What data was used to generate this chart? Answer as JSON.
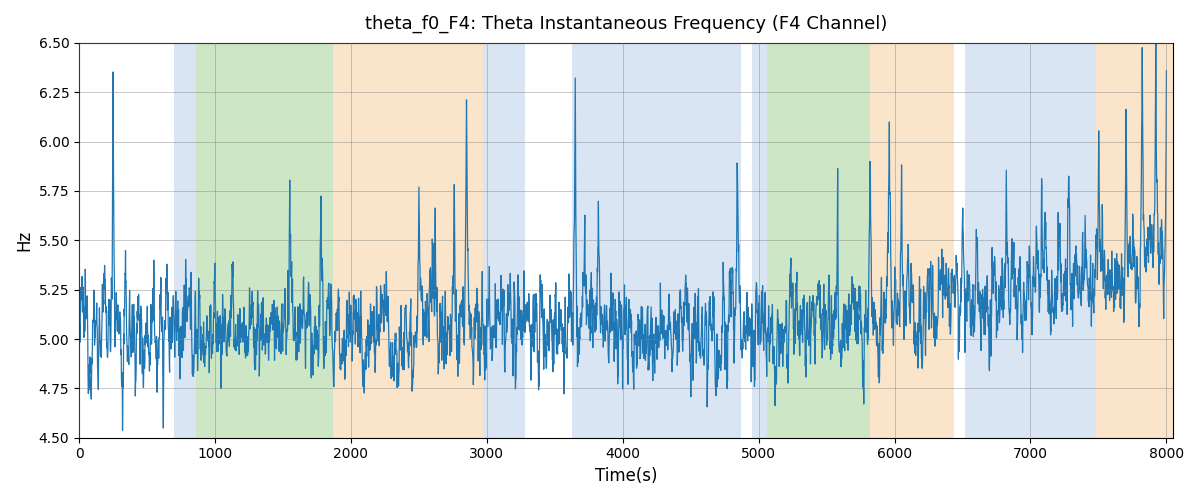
{
  "title": "theta_f0_F4: Theta Instantaneous Frequency (F4 Channel)",
  "xlabel": "Time(s)",
  "ylabel": "Hz",
  "xlim": [
    0,
    8050
  ],
  "ylim": [
    4.5,
    6.5
  ],
  "yticks": [
    4.5,
    4.75,
    5.0,
    5.25,
    5.5,
    5.75,
    6.0,
    6.25,
    6.5
  ],
  "xticks": [
    0,
    1000,
    2000,
    3000,
    4000,
    5000,
    6000,
    7000,
    8000
  ],
  "line_color": "#1f77b4",
  "bg_color": "#ffffff",
  "bands": [
    {
      "xmin": 700,
      "xmax": 860,
      "color": "#aec6e8",
      "alpha": 0.45
    },
    {
      "xmin": 860,
      "xmax": 1870,
      "color": "#90c97f",
      "alpha": 0.45
    },
    {
      "xmin": 1870,
      "xmax": 2970,
      "color": "#f5c48a",
      "alpha": 0.45
    },
    {
      "xmin": 2970,
      "xmax": 3280,
      "color": "#aec6e8",
      "alpha": 0.45
    },
    {
      "xmin": 3630,
      "xmax": 4870,
      "color": "#aec6e8",
      "alpha": 0.45
    },
    {
      "xmin": 4950,
      "xmax": 5060,
      "color": "#aec6e8",
      "alpha": 0.45
    },
    {
      "xmin": 5060,
      "xmax": 5820,
      "color": "#90c97f",
      "alpha": 0.45
    },
    {
      "xmin": 5820,
      "xmax": 6440,
      "color": "#f5c48a",
      "alpha": 0.45
    },
    {
      "xmin": 6520,
      "xmax": 7480,
      "color": "#aec6e8",
      "alpha": 0.45
    },
    {
      "xmin": 7480,
      "xmax": 8050,
      "color": "#f5c48a",
      "alpha": 0.45
    }
  ],
  "seed": 12345,
  "n_points": 4000,
  "line_width": 0.9,
  "base_freq": 5.05,
  "noise_std": 0.13
}
